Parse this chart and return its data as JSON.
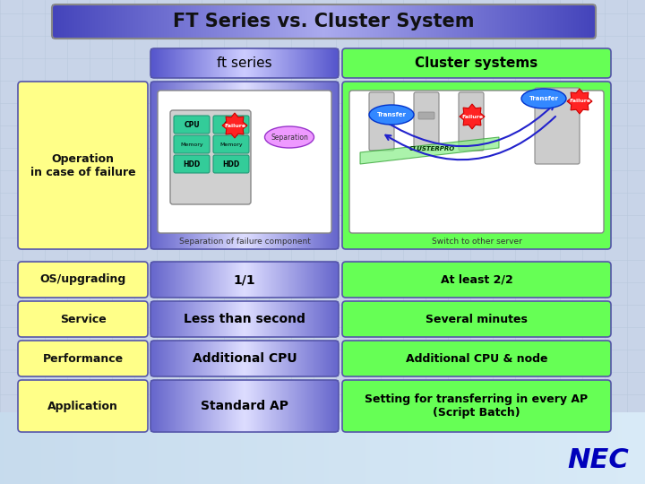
{
  "title": "FT Series vs. Cluster System",
  "col_headers": [
    "ft series",
    "Cluster systems"
  ],
  "row_labels": [
    "Operation\nin case of failure",
    "OS/upgrading",
    "Service",
    "Performance",
    "Application"
  ],
  "ft_values": [
    "",
    "1/1",
    "Less than second",
    "Additional CPU",
    "Standard AP"
  ],
  "cluster_values": [
    "",
    "At least 2/2",
    "Several minutes",
    "Additional CPU & node",
    "Setting for transferring in every AP\n(Script Batch)"
  ],
  "ft_caption": "Separation of failure component",
  "cluster_caption": "Switch to other server",
  "bg_color": "#c8d4e8",
  "title_gradient_center": "#9999ee",
  "title_gradient_edge": "#4444bb",
  "header_ft_bg": "#7777cc",
  "header_cluster_bg": "#66ff66",
  "row_label_bg": "#ffff66",
  "ft_cell_gradient_center": "#ffffff",
  "ft_cell_gradient_edge": "#6666cc",
  "cluster_cell_bg": "#66ff66",
  "nec_color": "#0000cc",
  "border_color": "#5555aa"
}
